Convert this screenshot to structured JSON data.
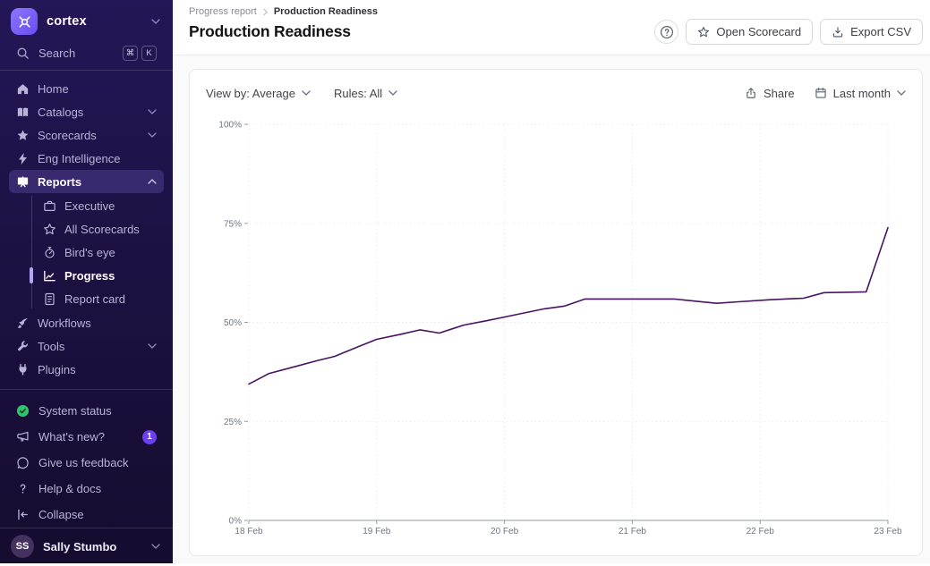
{
  "sidebar": {
    "brand": {
      "name": "cortex",
      "logo_icon": "cortex-logo-icon",
      "accent": "#7b5df6"
    },
    "search": {
      "label": "Search",
      "icon": "search-icon",
      "shortcut": [
        "⌘",
        "K"
      ]
    },
    "nav": [
      {
        "label": "Home",
        "icon": "home-icon"
      },
      {
        "label": "Catalogs",
        "icon": "book-icon",
        "chevron": "down"
      },
      {
        "label": "Scorecards",
        "icon": "star-icon",
        "chevron": "down"
      },
      {
        "label": "Eng Intelligence",
        "icon": "bolt-icon"
      },
      {
        "label": "Reports",
        "icon": "presentation-icon",
        "chevron": "up",
        "active": true
      }
    ],
    "reports_children": [
      {
        "label": "Executive",
        "icon": "briefcase-icon"
      },
      {
        "label": "All Scorecards",
        "icon": "star-outline-icon"
      },
      {
        "label": "Bird's eye",
        "icon": "birds-eye-icon"
      },
      {
        "label": "Progress",
        "icon": "line-chart-icon",
        "active": true
      },
      {
        "label": "Report card",
        "icon": "report-card-icon"
      }
    ],
    "nav_lower": [
      {
        "label": "Workflows",
        "icon": "workflows-icon"
      },
      {
        "label": "Tools",
        "icon": "wrench-icon",
        "chevron": "down"
      },
      {
        "label": "Plugins",
        "icon": "plug-icon"
      }
    ],
    "utility": [
      {
        "label": "System status",
        "icon": "status-ok-icon",
        "status_color": "#2fc36b"
      },
      {
        "label": "What's new?",
        "icon": "megaphone-icon",
        "badge": "1",
        "badge_color": "#6d3ff2"
      },
      {
        "label": "Give us feedback",
        "icon": "chat-icon"
      },
      {
        "label": "Help & docs",
        "icon": "question-icon"
      },
      {
        "label": "Collapse",
        "icon": "collapse-icon"
      }
    ],
    "user": {
      "initials": "SS",
      "name": "Sally Stumbo"
    }
  },
  "header": {
    "breadcrumb": {
      "parent": "Progress report",
      "current": "Production Readiness"
    },
    "title": "Production Readiness",
    "actions": {
      "open_scorecard": "Open Scorecard",
      "export_csv": "Export CSV"
    }
  },
  "chart_card": {
    "view_by": "View by: Average",
    "rules": "Rules: All",
    "share": "Share",
    "date_range": "Last month"
  },
  "chart_data": {
    "type": "line",
    "title": "Production Readiness average score over time",
    "x_ticks": [
      "18 Feb",
      "19 Feb",
      "20 Feb",
      "21 Feb",
      "22 Feb",
      "23 Feb"
    ],
    "y_ticks": [
      "0%",
      "25%",
      "50%",
      "75%",
      "100%"
    ],
    "ylim": [
      0,
      100
    ],
    "grid": "dotted",
    "legend": "none",
    "line_color": "#48135e",
    "series": [
      {
        "name": "Average",
        "color": "#48135e",
        "points": [
          [
            0.0,
            34.4
          ],
          [
            0.16,
            37.1
          ],
          [
            0.37,
            38.9
          ],
          [
            0.53,
            40.3
          ],
          [
            0.67,
            41.4
          ],
          [
            0.86,
            43.9
          ],
          [
            1.0,
            45.7
          ],
          [
            1.19,
            47.0
          ],
          [
            1.34,
            48.1
          ],
          [
            1.49,
            47.3
          ],
          [
            1.68,
            49.3
          ],
          [
            1.86,
            50.4
          ],
          [
            2.07,
            51.8
          ],
          [
            2.31,
            53.4
          ],
          [
            2.47,
            54.1
          ],
          [
            2.63,
            55.9
          ],
          [
            3.0,
            55.9
          ],
          [
            3.33,
            55.9
          ],
          [
            3.66,
            54.8
          ],
          [
            3.83,
            55.2
          ],
          [
            4.08,
            55.7
          ],
          [
            4.34,
            56.1
          ],
          [
            4.5,
            57.5
          ],
          [
            4.83,
            57.7
          ],
          [
            5.0,
            73.9
          ]
        ]
      }
    ]
  }
}
